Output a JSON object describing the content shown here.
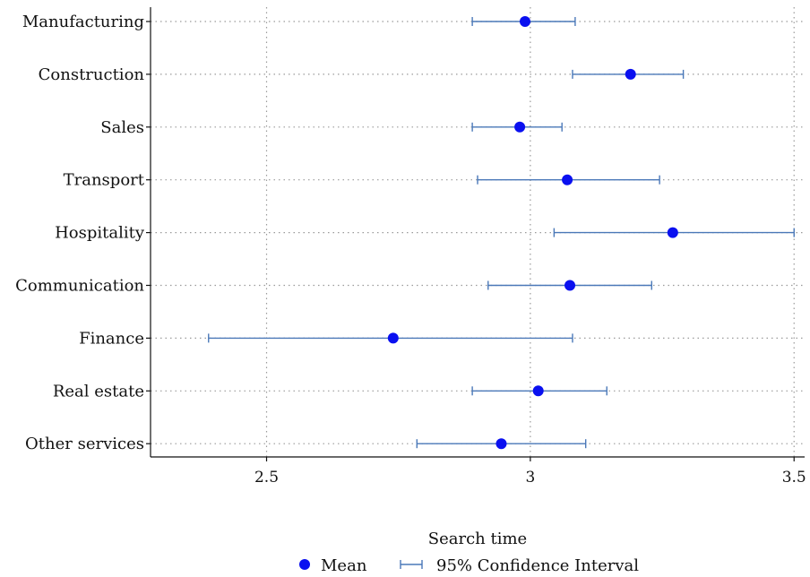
{
  "colors": {
    "mean": "#0a10f0",
    "ci": "#4a78b8",
    "grid": "#9a9a9a",
    "axis": "#111111"
  },
  "chart_data": {
    "type": "scatter",
    "orientation": "horizontal",
    "categories": [
      "Manufacturing",
      "Construction",
      "Sales",
      "Transport",
      "Hospitality",
      "Communication",
      "Finance",
      "Real estate",
      "Other services"
    ],
    "series": [
      {
        "name": "Mean",
        "values": [
          2.99,
          3.19,
          2.98,
          3.07,
          3.27,
          3.075,
          2.74,
          3.015,
          2.945
        ]
      },
      {
        "name": "95% Confidence Interval",
        "lower": [
          2.89,
          3.08,
          2.89,
          2.9,
          3.045,
          2.92,
          2.39,
          2.89,
          2.785
        ],
        "upper": [
          3.085,
          3.29,
          3.06,
          3.245,
          3.5,
          3.23,
          3.08,
          3.145,
          3.105
        ]
      }
    ],
    "xlabel": "Search time",
    "ylabel": "",
    "xlim": [
      2.28,
      3.52
    ],
    "xticks": [
      2.5,
      3,
      3.5
    ],
    "xtick_labels": [
      "2.5",
      "3",
      "3.5"
    ],
    "grid": true,
    "legend": {
      "placement": "bottom",
      "entries": [
        "Mean",
        "95% Confidence Interval"
      ]
    }
  }
}
